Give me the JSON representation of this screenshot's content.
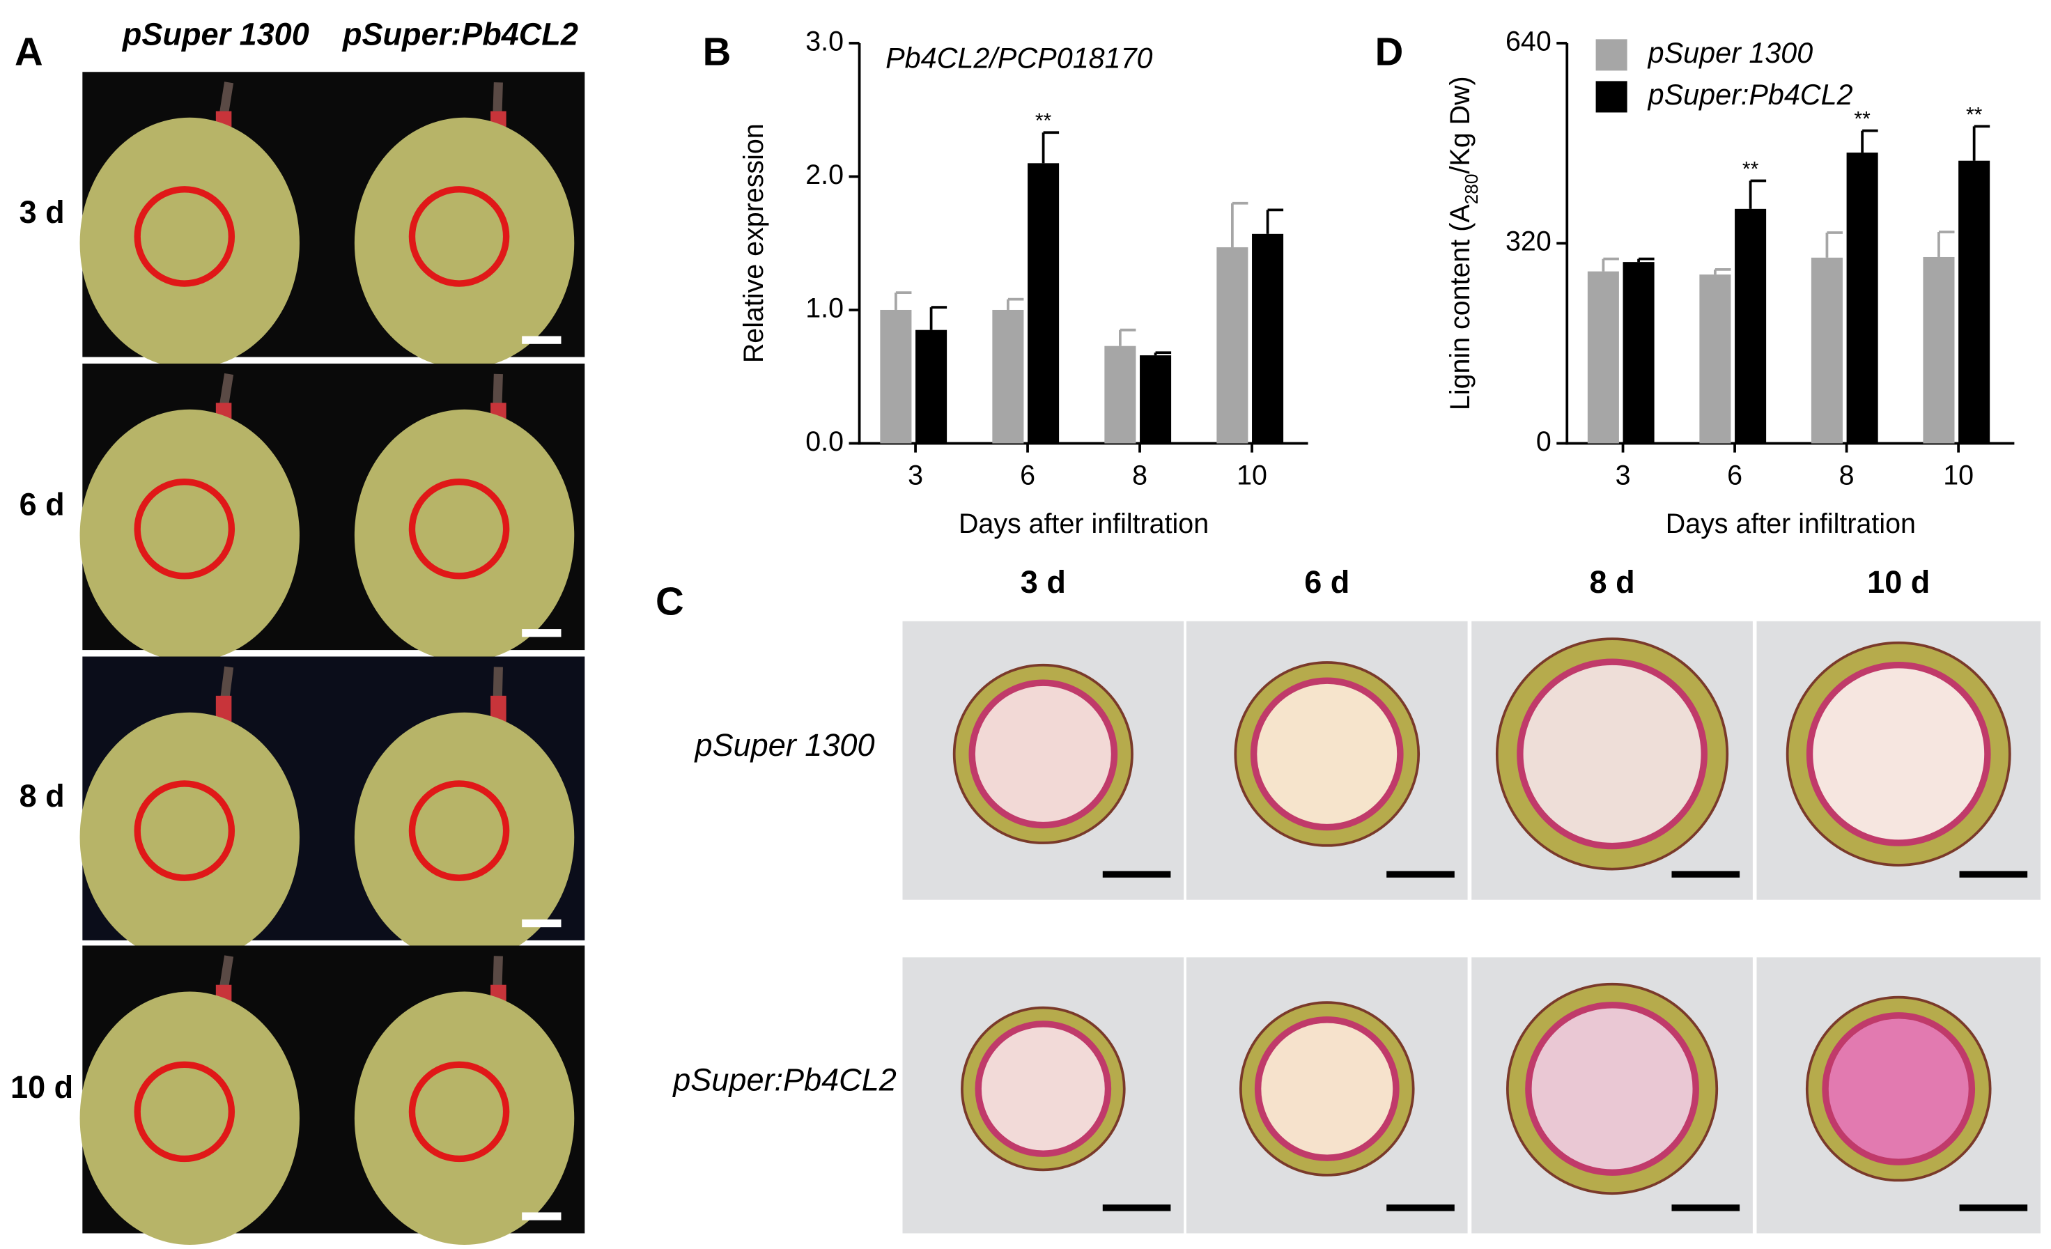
{
  "panel_a": {
    "label": "A",
    "columns": [
      "pSuper 1300",
      "pSuper:Pb4CL2"
    ],
    "rows": [
      "3 d",
      "6 d",
      "8 d",
      "10 d"
    ]
  },
  "panel_c": {
    "label": "C",
    "columns": [
      "3 d",
      "6 d",
      "8 d",
      "10 d"
    ],
    "rows": [
      "pSuper 1300",
      "pSuper:Pb4CL2"
    ]
  },
  "chart_data": [
    {
      "type": "bar",
      "panel": "B",
      "title": "Pb4CL2/PCP018170",
      "xlabel": "Days after infiltration",
      "ylabel": [
        "Relative expression"
      ],
      "categories": [
        "3",
        "6",
        "8",
        "10"
      ],
      "series": [
        {
          "color": "#a6a6a6",
          "values": [
            1.0,
            1.0,
            0.73,
            1.47
          ],
          "errors": [
            0.13,
            0.08,
            0.12,
            0.33
          ],
          "significance": [
            null,
            null,
            null,
            null
          ]
        },
        {
          "color": "#000000",
          "values": [
            0.85,
            2.1,
            0.66,
            1.57
          ],
          "errors": [
            0.17,
            0.23,
            0.02,
            0.18
          ],
          "significance": [
            null,
            "**",
            null,
            null
          ]
        }
      ],
      "ylim": [
        0,
        3.0
      ],
      "yticks": [
        {
          "value": 0,
          "label": "0.0"
        },
        {
          "value": 1,
          "label": "1.0"
        },
        {
          "value": 2,
          "label": "2.0"
        },
        {
          "value": 3,
          "label": "3.0"
        }
      ],
      "legend": false
    },
    {
      "type": "bar",
      "panel": "D",
      "xlabel": "Days after infiltration",
      "ylabel": [
        "Lignin content (A",
        "280",
        "/Kg Dw)"
      ],
      "categories": [
        "3",
        "6",
        "8",
        "10"
      ],
      "series": [
        {
          "name": "pSuper 1300",
          "color": "#a6a6a6",
          "values": [
            275,
            270,
            297,
            298
          ],
          "errors": [
            20,
            8,
            40,
            40
          ],
          "significance": [
            null,
            null,
            null,
            null
          ]
        },
        {
          "name": "pSuper:Pb4CL2",
          "color": "#000000",
          "values": [
            290,
            375,
            465,
            452
          ],
          "errors": [
            5,
            45,
            35,
            55
          ],
          "significance": [
            null,
            "**",
            "**",
            "**"
          ]
        }
      ],
      "ylim": [
        0,
        640
      ],
      "yticks": [
        0,
        320,
        640
      ],
      "legend": true
    }
  ]
}
